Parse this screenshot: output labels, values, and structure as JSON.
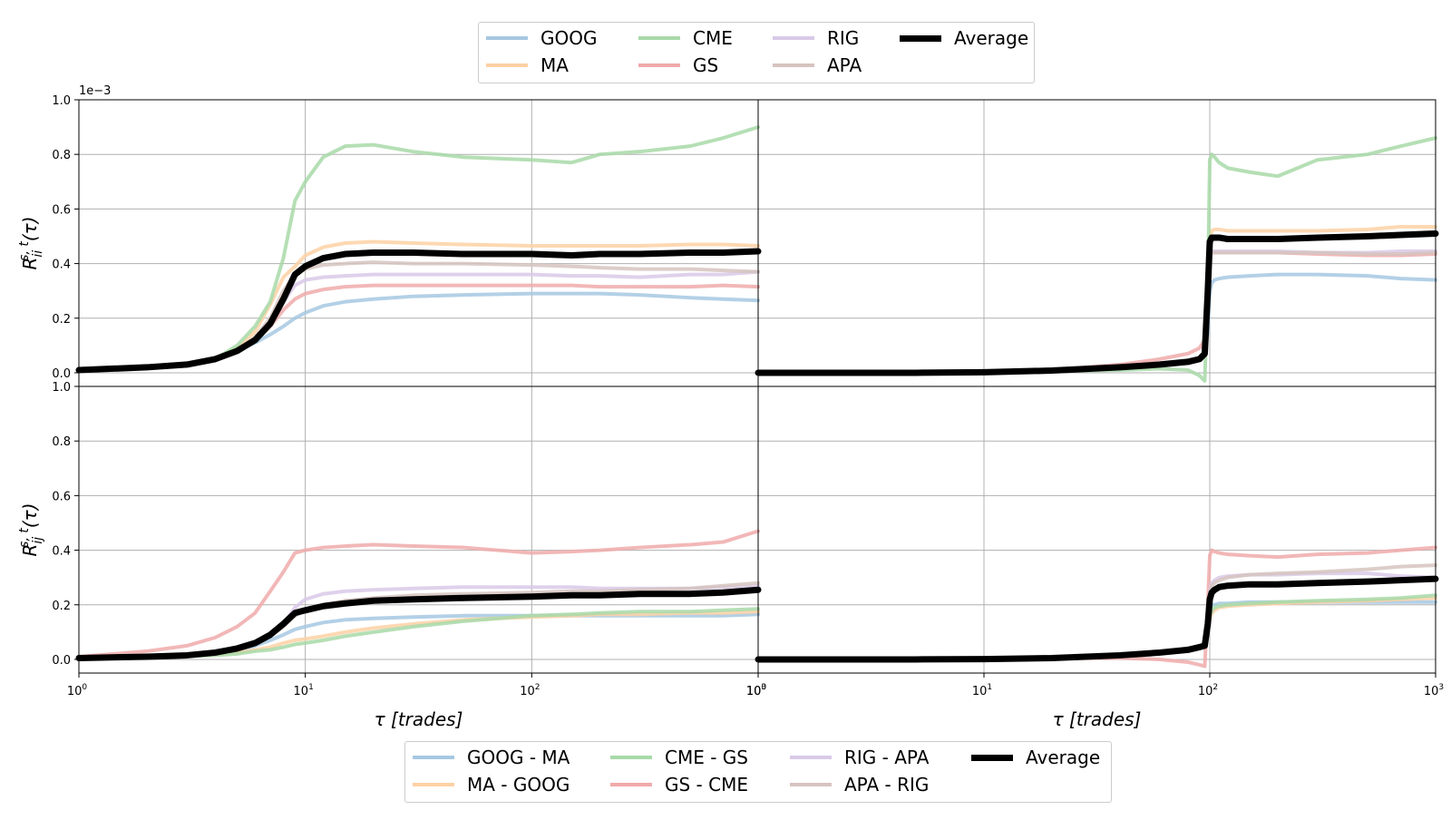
{
  "chart_data": {
    "type": "line",
    "x_scale": "log",
    "grid": true,
    "xlabel": "τ [trades]",
    "x_ticks": [
      "10^0",
      "10^1",
      "10^2",
      "10^3"
    ],
    "y_ticks": [
      "0.0",
      "0.2",
      "0.4",
      "0.6",
      "0.8",
      "1.0"
    ],
    "y_offset_label": "1e−3",
    "legend_top": {
      "position": "top-center",
      "entries": [
        {
          "name": "GOOG",
          "color": "#a6c8e2"
        },
        {
          "name": "CME",
          "color": "#a8d9a8"
        },
        {
          "name": "RIG",
          "color": "#d9c9e8"
        },
        {
          "name": "Average",
          "color": "#000000"
        },
        {
          "name": "MA",
          "color": "#fdd1a4"
        },
        {
          "name": "GS",
          "color": "#f0aaaa"
        },
        {
          "name": "APA",
          "color": "#d6c4bf"
        }
      ]
    },
    "legend_bottom": {
      "position": "bottom-center",
      "entries": [
        {
          "name": "GOOG - MA",
          "color": "#a6c8e2"
        },
        {
          "name": "CME - GS",
          "color": "#a8d9a8"
        },
        {
          "name": "RIG - APA",
          "color": "#d9c9e8"
        },
        {
          "name": "Average",
          "color": "#000000"
        },
        {
          "name": "MA - GOOG",
          "color": "#fdd1a4"
        },
        {
          "name": "GS - CME",
          "color": "#f0aaaa"
        },
        {
          "name": "APA - RIG",
          "color": "#d6c4bf"
        }
      ]
    },
    "panels": [
      {
        "ylabel": "R_ii^{s,t}(τ)",
        "xlim": [
          1,
          1000
        ],
        "ylim": [
          -0.05,
          1.0
        ],
        "x": [
          1,
          2,
          3,
          4,
          5,
          6,
          7,
          8,
          9,
          10,
          12,
          15,
          20,
          30,
          50,
          100,
          150,
          200,
          300,
          500,
          700,
          1000
        ],
        "series": [
          {
            "name": "GOOG",
            "values": [
              0.01,
              0.02,
              0.03,
              0.05,
              0.08,
              0.11,
              0.14,
              0.17,
              0.2,
              0.22,
              0.245,
              0.26,
              0.27,
              0.28,
              0.285,
              0.29,
              0.29,
              0.29,
              0.285,
              0.275,
              0.27,
              0.265
            ]
          },
          {
            "name": "MA",
            "values": [
              0.01,
              0.02,
              0.03,
              0.05,
              0.09,
              0.15,
              0.25,
              0.35,
              0.39,
              0.43,
              0.46,
              0.475,
              0.48,
              0.475,
              0.47,
              0.465,
              0.465,
              0.465,
              0.465,
              0.47,
              0.47,
              0.465
            ]
          },
          {
            "name": "CME",
            "values": [
              0.01,
              0.02,
              0.03,
              0.05,
              0.1,
              0.17,
              0.26,
              0.42,
              0.63,
              0.7,
              0.79,
              0.83,
              0.835,
              0.81,
              0.79,
              0.78,
              0.77,
              0.8,
              0.81,
              0.83,
              0.86,
              0.9
            ]
          },
          {
            "name": "GS",
            "values": [
              0.01,
              0.02,
              0.03,
              0.05,
              0.08,
              0.12,
              0.17,
              0.23,
              0.27,
              0.29,
              0.305,
              0.315,
              0.32,
              0.32,
              0.32,
              0.32,
              0.32,
              0.315,
              0.315,
              0.315,
              0.32,
              0.315
            ]
          },
          {
            "name": "RIG",
            "values": [
              0.01,
              0.02,
              0.03,
              0.05,
              0.08,
              0.12,
              0.18,
              0.26,
              0.32,
              0.34,
              0.35,
              0.355,
              0.36,
              0.36,
              0.36,
              0.36,
              0.355,
              0.355,
              0.35,
              0.36,
              0.36,
              0.37
            ]
          },
          {
            "name": "APA",
            "values": [
              0.01,
              0.02,
              0.03,
              0.05,
              0.08,
              0.13,
              0.2,
              0.3,
              0.36,
              0.38,
              0.395,
              0.4,
              0.405,
              0.4,
              0.4,
              0.395,
              0.39,
              0.385,
              0.38,
              0.38,
              0.375,
              0.37
            ]
          },
          {
            "name": "Average",
            "values": [
              0.01,
              0.02,
              0.03,
              0.05,
              0.08,
              0.12,
              0.18,
              0.27,
              0.36,
              0.39,
              0.42,
              0.435,
              0.44,
              0.44,
              0.435,
              0.435,
              0.43,
              0.435,
              0.435,
              0.44,
              0.44,
              0.445
            ]
          }
        ]
      },
      {
        "ylabel": "",
        "xlim": [
          1,
          1000
        ],
        "ylim": [
          -0.05,
          1.0
        ],
        "x": [
          1,
          2,
          5,
          10,
          20,
          40,
          60,
          80,
          90,
          95,
          98,
          100,
          102,
          105,
          110,
          120,
          150,
          200,
          300,
          500,
          700,
          1000
        ],
        "series": [
          {
            "name": "GOOG",
            "values": [
              0,
              0,
              0,
              0.002,
              0.008,
              0.02,
              0.03,
              0.04,
              0.05,
              0.06,
              0.15,
              0.3,
              0.33,
              0.34,
              0.345,
              0.35,
              0.355,
              0.36,
              0.36,
              0.355,
              0.345,
              0.34
            ]
          },
          {
            "name": "MA",
            "values": [
              0,
              0,
              0,
              0.002,
              0.008,
              0.02,
              0.03,
              0.04,
              0.05,
              0.06,
              0.3,
              0.49,
              0.52,
              0.525,
              0.525,
              0.52,
              0.52,
              0.52,
              0.52,
              0.525,
              0.535,
              0.535
            ]
          },
          {
            "name": "CME",
            "values": [
              0,
              0,
              0,
              0.002,
              0.006,
              0.01,
              0.015,
              0.01,
              -0.01,
              -0.03,
              0.3,
              0.78,
              0.8,
              0.79,
              0.77,
              0.75,
              0.735,
              0.72,
              0.78,
              0.8,
              0.83,
              0.86
            ]
          },
          {
            "name": "GS",
            "values": [
              0,
              0,
              0,
              0.002,
              0.01,
              0.03,
              0.05,
              0.07,
              0.09,
              0.12,
              0.3,
              0.43,
              0.44,
              0.44,
              0.44,
              0.44,
              0.44,
              0.44,
              0.435,
              0.43,
              0.43,
              0.435
            ]
          },
          {
            "name": "RIG",
            "values": [
              0,
              0,
              0,
              0.002,
              0.008,
              0.02,
              0.03,
              0.04,
              0.05,
              0.06,
              0.3,
              0.44,
              0.445,
              0.445,
              0.445,
              0.445,
              0.445,
              0.445,
              0.44,
              0.44,
              0.445,
              0.445
            ]
          },
          {
            "name": "APA",
            "values": [
              0,
              0,
              0,
              0.002,
              0.008,
              0.02,
              0.03,
              0.04,
              0.05,
              0.06,
              0.3,
              0.43,
              0.44,
              0.44,
              0.44,
              0.44,
              0.44,
              0.44,
              0.44,
              0.435,
              0.435,
              0.44
            ]
          },
          {
            "name": "Average",
            "values": [
              0,
              0,
              0,
              0.002,
              0.008,
              0.02,
              0.03,
              0.04,
              0.05,
              0.07,
              0.3,
              0.48,
              0.495,
              0.495,
              0.495,
              0.49,
              0.49,
              0.49,
              0.495,
              0.5,
              0.505,
              0.51
            ]
          }
        ]
      },
      {
        "ylabel": "R_ij^{s,t}(τ)",
        "xlim": [
          1,
          1000
        ],
        "ylim": [
          -0.05,
          1.0
        ],
        "x": [
          1,
          2,
          3,
          4,
          5,
          6,
          7,
          8,
          9,
          10,
          12,
          15,
          20,
          30,
          50,
          100,
          150,
          200,
          300,
          500,
          700,
          1000
        ],
        "series": [
          {
            "name": "GOOG - MA",
            "values": [
              0.005,
              0.01,
              0.015,
              0.02,
              0.03,
              0.05,
              0.07,
              0.09,
              0.11,
              0.12,
              0.135,
              0.145,
              0.15,
              0.155,
              0.16,
              0.16,
              0.16,
              0.16,
              0.16,
              0.16,
              0.16,
              0.165
            ]
          },
          {
            "name": "MA - GOOG",
            "values": [
              0.005,
              0.008,
              0.012,
              0.018,
              0.025,
              0.035,
              0.045,
              0.06,
              0.07,
              0.075,
              0.085,
              0.1,
              0.115,
              0.13,
              0.145,
              0.155,
              0.16,
              0.165,
              0.165,
              0.17,
              0.17,
              0.175
            ]
          },
          {
            "name": "CME - GS",
            "values": [
              0.005,
              0.008,
              0.012,
              0.015,
              0.02,
              0.03,
              0.035,
              0.045,
              0.055,
              0.06,
              0.07,
              0.085,
              0.1,
              0.12,
              0.14,
              0.16,
              0.165,
              0.17,
              0.175,
              0.175,
              0.18,
              0.185
            ]
          },
          {
            "name": "GS - CME",
            "values": [
              0.01,
              0.03,
              0.05,
              0.08,
              0.12,
              0.17,
              0.25,
              0.32,
              0.39,
              0.4,
              0.41,
              0.415,
              0.42,
              0.415,
              0.41,
              0.39,
              0.395,
              0.4,
              0.41,
              0.42,
              0.43,
              0.47
            ]
          },
          {
            "name": "RIG - APA",
            "values": [
              0.005,
              0.01,
              0.015,
              0.025,
              0.04,
              0.06,
              0.09,
              0.13,
              0.19,
              0.22,
              0.24,
              0.25,
              0.255,
              0.26,
              0.265,
              0.265,
              0.265,
              0.26,
              0.26,
              0.26,
              0.265,
              0.27
            ]
          },
          {
            "name": "APA - RIG",
            "values": [
              0.005,
              0.01,
              0.015,
              0.025,
              0.04,
              0.06,
              0.085,
              0.12,
              0.16,
              0.18,
              0.2,
              0.215,
              0.225,
              0.235,
              0.24,
              0.245,
              0.25,
              0.25,
              0.255,
              0.26,
              0.27,
              0.28
            ]
          },
          {
            "name": "Average",
            "values": [
              0.005,
              0.01,
              0.015,
              0.025,
              0.04,
              0.06,
              0.09,
              0.13,
              0.17,
              0.18,
              0.195,
              0.205,
              0.215,
              0.22,
              0.225,
              0.23,
              0.235,
              0.235,
              0.24,
              0.24,
              0.245,
              0.255
            ]
          }
        ]
      },
      {
        "ylabel": "",
        "xlim": [
          1,
          1000
        ],
        "ylim": [
          -0.05,
          1.0
        ],
        "x": [
          1,
          2,
          5,
          10,
          20,
          40,
          60,
          80,
          90,
          95,
          98,
          100,
          102,
          105,
          110,
          120,
          150,
          200,
          300,
          500,
          700,
          1000
        ],
        "series": [
          {
            "name": "GOOG - MA",
            "values": [
              0,
              0,
              0,
              0.001,
              0.005,
              0.015,
              0.025,
              0.035,
              0.045,
              0.05,
              0.12,
              0.19,
              0.2,
              0.2,
              0.205,
              0.205,
              0.21,
              0.21,
              0.21,
              0.21,
              0.21,
              0.21
            ]
          },
          {
            "name": "MA - GOOG",
            "values": [
              0,
              0,
              0,
              0.001,
              0.005,
              0.015,
              0.025,
              0.035,
              0.045,
              0.05,
              0.1,
              0.15,
              0.17,
              0.18,
              0.19,
              0.195,
              0.2,
              0.205,
              0.21,
              0.215,
              0.22,
              0.225
            ]
          },
          {
            "name": "CME - GS",
            "values": [
              0,
              0,
              0,
              0.001,
              0.005,
              0.015,
              0.025,
              0.035,
              0.045,
              0.05,
              0.1,
              0.16,
              0.18,
              0.19,
              0.195,
              0.2,
              0.205,
              0.21,
              0.215,
              0.22,
              0.225,
              0.235
            ]
          },
          {
            "name": "GS - CME",
            "values": [
              0,
              0,
              0,
              0.001,
              0.003,
              0.005,
              0.0,
              -0.01,
              -0.02,
              -0.025,
              0.2,
              0.38,
              0.4,
              0.395,
              0.39,
              0.385,
              0.38,
              0.375,
              0.385,
              0.39,
              0.4,
              0.41
            ]
          },
          {
            "name": "RIG - APA",
            "values": [
              0,
              0,
              0,
              0.001,
              0.005,
              0.015,
              0.025,
              0.035,
              0.045,
              0.05,
              0.15,
              0.25,
              0.28,
              0.29,
              0.3,
              0.305,
              0.31,
              0.31,
              0.315,
              0.315,
              0.305,
              0.3
            ]
          },
          {
            "name": "APA - RIG",
            "values": [
              0,
              0,
              0,
              0.001,
              0.005,
              0.015,
              0.025,
              0.035,
              0.045,
              0.05,
              0.15,
              0.24,
              0.27,
              0.28,
              0.29,
              0.3,
              0.31,
              0.315,
              0.32,
              0.33,
              0.34,
              0.345
            ]
          },
          {
            "name": "Average",
            "values": [
              0,
              0,
              0,
              0.001,
              0.005,
              0.015,
              0.025,
              0.035,
              0.045,
              0.05,
              0.13,
              0.22,
              0.245,
              0.255,
              0.265,
              0.27,
              0.275,
              0.275,
              0.28,
              0.285,
              0.29,
              0.295
            ]
          }
        ]
      }
    ]
  }
}
